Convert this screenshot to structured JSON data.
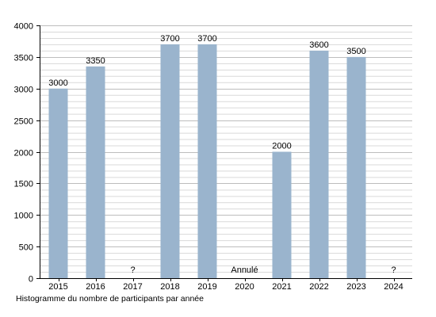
{
  "caption": "Histogramme du nombre de participants par année",
  "colors": {
    "bar": "#9ab4cd",
    "minor_grid": "#d9d9d9",
    "major_grid": "#bdbdbd",
    "axis": "#000000"
  },
  "chart_data": {
    "type": "bar",
    "title": "",
    "xlabel": "",
    "ylabel": "",
    "categories": [
      "2015",
      "2016",
      "2017",
      "2018",
      "2019",
      "2020",
      "2021",
      "2022",
      "2023",
      "2024"
    ],
    "values": [
      3000,
      3350,
      null,
      3700,
      3700,
      null,
      2000,
      3600,
      3500,
      null
    ],
    "value_labels": [
      "3000",
      "3350",
      "?",
      "3700",
      "3700",
      "Annulé",
      "2000",
      "3600",
      "3500",
      "?"
    ],
    "ylim": [
      0,
      4000
    ],
    "yticks": [
      0,
      500,
      1000,
      1500,
      2000,
      2500,
      3000,
      3500,
      4000
    ],
    "minor_step": 100,
    "grid": true,
    "legend": "none"
  }
}
